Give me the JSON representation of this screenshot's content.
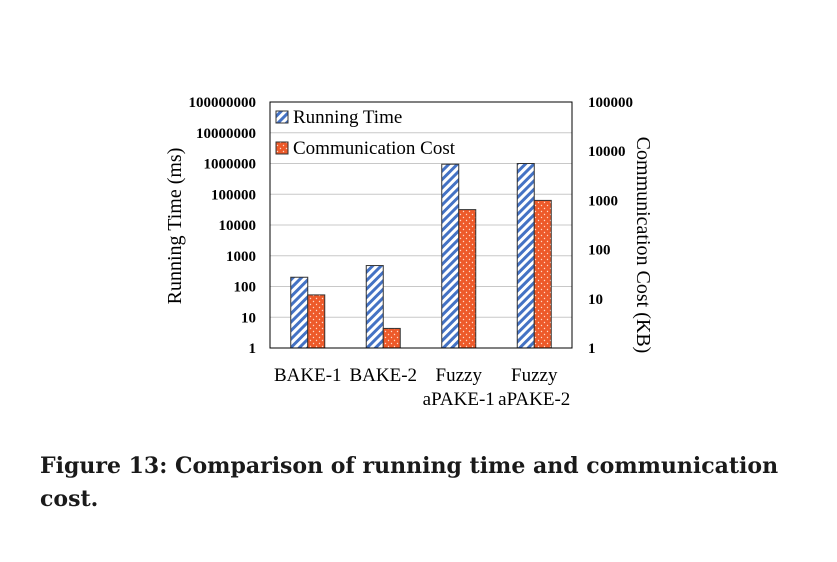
{
  "chart_data": {
    "type": "bar",
    "categories": [
      "BAKE-1",
      "BAKE-2",
      "Fuzzy aPAKE-1",
      "Fuzzy aPAKE-2"
    ],
    "category_lines": [
      [
        "BAKE-1"
      ],
      [
        "BAKE-2"
      ],
      [
        "Fuzzy",
        "aPAKE-1"
      ],
      [
        "Fuzzy",
        "aPAKE-2"
      ]
    ],
    "series": [
      {
        "name": "Running Time",
        "axis": "left",
        "values": [
          200,
          480,
          950000,
          1000000
        ],
        "color": "#4472c4",
        "pattern": "diagonal-hatch"
      },
      {
        "name": "Communication Cost",
        "axis": "right",
        "values": [
          12,
          2.5,
          650,
          1000
        ],
        "color": "#ed5a2a",
        "pattern": "dotted-fill"
      }
    ],
    "ylabel": "Running Time (ms)",
    "ylabel_right": "Communication Cost (KB)",
    "y_scale": "log",
    "ylim": [
      1,
      100000000
    ],
    "y_ticks": [
      "1",
      "10",
      "100",
      "1000",
      "10000",
      "100000",
      "1000000",
      "10000000",
      "100000000"
    ],
    "y2_scale": "log",
    "y2lim": [
      1,
      100000
    ],
    "y2_ticks": [
      "1",
      "10",
      "100",
      "1000",
      "10000",
      "100000"
    ],
    "grid": true,
    "legend_position": "top-left"
  },
  "caption": "Figure 13:  Comparison of running time and communication cost."
}
